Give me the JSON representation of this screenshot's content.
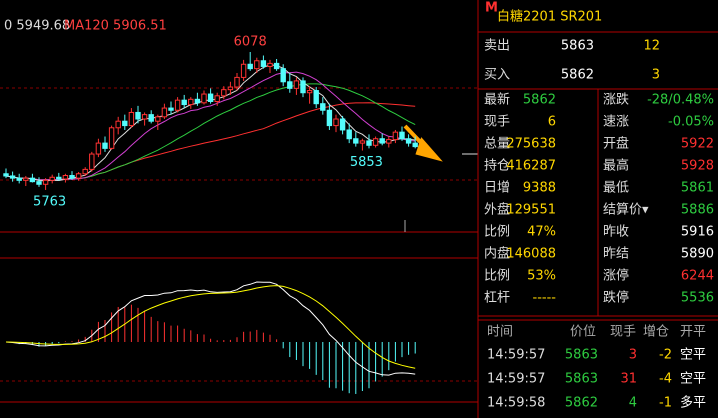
{
  "chart_data": {
    "type": "candlestick",
    "ma_labels": [
      "0  5949.68",
      "MA120 5906.51"
    ],
    "high_label": 6078,
    "low_labels": [
      5763,
      5853
    ],
    "up_color": "#ff3232",
    "down_color": "#54fcfc",
    "candles": [
      [
        5800,
        5812,
        5790,
        5795
      ],
      [
        5795,
        5805,
        5782,
        5790
      ],
      [
        5790,
        5800,
        5778,
        5785
      ],
      [
        5785,
        5795,
        5772,
        5790
      ],
      [
        5790,
        5800,
        5780,
        5782
      ],
      [
        5782,
        5792,
        5770,
        5776
      ],
      [
        5776,
        5790,
        5763,
        5785
      ],
      [
        5785,
        5798,
        5778,
        5792
      ],
      [
        5792,
        5802,
        5784,
        5788
      ],
      [
        5788,
        5800,
        5780,
        5796
      ],
      [
        5796,
        5806,
        5786,
        5790
      ],
      [
        5790,
        5804,
        5784,
        5800
      ],
      [
        5800,
        5815,
        5795,
        5810
      ],
      [
        5810,
        5850,
        5805,
        5845
      ],
      [
        5845,
        5880,
        5838,
        5870
      ],
      [
        5870,
        5885,
        5850,
        5858
      ],
      [
        5858,
        5910,
        5855,
        5905
      ],
      [
        5905,
        5930,
        5890,
        5920
      ],
      [
        5920,
        5935,
        5900,
        5910
      ],
      [
        5910,
        5950,
        5905,
        5940
      ],
      [
        5940,
        5955,
        5915,
        5925
      ],
      [
        5925,
        5940,
        5910,
        5935
      ],
      [
        5935,
        5945,
        5915,
        5920
      ],
      [
        5920,
        5935,
        5900,
        5930
      ],
      [
        5930,
        5960,
        5925,
        5950
      ],
      [
        5950,
        5965,
        5935,
        5945
      ],
      [
        5945,
        5975,
        5940,
        5968
      ],
      [
        5968,
        5980,
        5950,
        5958
      ],
      [
        5958,
        5975,
        5948,
        5970
      ],
      [
        5970,
        5985,
        5955,
        5962
      ],
      [
        5962,
        5990,
        5958,
        5982
      ],
      [
        5982,
        5995,
        5960,
        5965
      ],
      [
        5965,
        5985,
        5955,
        5978
      ],
      [
        5978,
        6000,
        5970,
        5992
      ],
      [
        5992,
        6010,
        5980,
        5998
      ],
      [
        5998,
        6030,
        5990,
        6020
      ],
      [
        6020,
        6060,
        6012,
        6050
      ],
      [
        6050,
        6078,
        6035,
        6040
      ],
      [
        6040,
        6065,
        6030,
        6058
      ],
      [
        6058,
        6070,
        6040,
        6045
      ],
      [
        6045,
        6060,
        6030,
        6052
      ],
      [
        6052,
        6062,
        6035,
        6040
      ],
      [
        6040,
        6050,
        6000,
        6010
      ],
      [
        6010,
        6030,
        5985,
        5995
      ],
      [
        5995,
        6020,
        5980,
        6012
      ],
      [
        6012,
        6020,
        5975,
        5985
      ],
      [
        5985,
        6000,
        5960,
        5990
      ],
      [
        5990,
        5998,
        5950,
        5960
      ],
      [
        5960,
        5975,
        5935,
        5945
      ],
      [
        5945,
        5960,
        5900,
        5910
      ],
      [
        5910,
        5935,
        5895,
        5925
      ],
      [
        5925,
        5932,
        5890,
        5900
      ],
      [
        5900,
        5915,
        5870,
        5880
      ],
      [
        5880,
        5895,
        5862,
        5870
      ],
      [
        5870,
        5880,
        5853,
        5875
      ],
      [
        5875,
        5890,
        5858,
        5865
      ],
      [
        5865,
        5885,
        5860,
        5880
      ],
      [
        5880,
        5892,
        5865,
        5870
      ],
      [
        5870,
        5885,
        5860,
        5878
      ],
      [
        5878,
        5900,
        5870,
        5895
      ],
      [
        5895,
        5908,
        5875,
        5880
      ],
      [
        5880,
        5890,
        5862,
        5870
      ],
      [
        5870,
        5885,
        5858,
        5862
      ]
    ]
  },
  "quote": {
    "marker": "M",
    "title": "白糖2201  SR201",
    "ask": {
      "label": "卖出",
      "price": 5863,
      "volume": 12
    },
    "bid": {
      "label": "买入",
      "price": 5862,
      "volume": 3
    },
    "rows": [
      [
        "最新",
        5862,
        "涨跌",
        "-28/0.48%"
      ],
      [
        "现手",
        6,
        "速涨",
        "-0.05%"
      ],
      [
        "总量",
        275638,
        "开盘",
        5922
      ],
      [
        "持仓",
        416287,
        "最高",
        5928
      ],
      [
        "日增",
        9388,
        "最低",
        5861
      ],
      [
        "外盘",
        129551,
        "结算价▾",
        5886
      ],
      [
        "比例",
        "47%",
        "昨收",
        5916
      ],
      [
        "内盘",
        146088,
        "昨结",
        5890
      ],
      [
        "比例",
        "53%",
        "涨停",
        6244
      ],
      [
        "杠杆",
        "-----",
        "跌停",
        5536
      ]
    ],
    "trades": {
      "header": [
        "时间",
        "价位",
        "现手",
        "增仓",
        "开平"
      ],
      "rows": [
        [
          "14:59:57",
          5863,
          3,
          -2,
          "空平"
        ],
        [
          "14:59:57",
          5863,
          31,
          -4,
          "空平"
        ],
        [
          "14:59:58",
          5862,
          4,
          -1,
          "多平"
        ]
      ]
    }
  }
}
